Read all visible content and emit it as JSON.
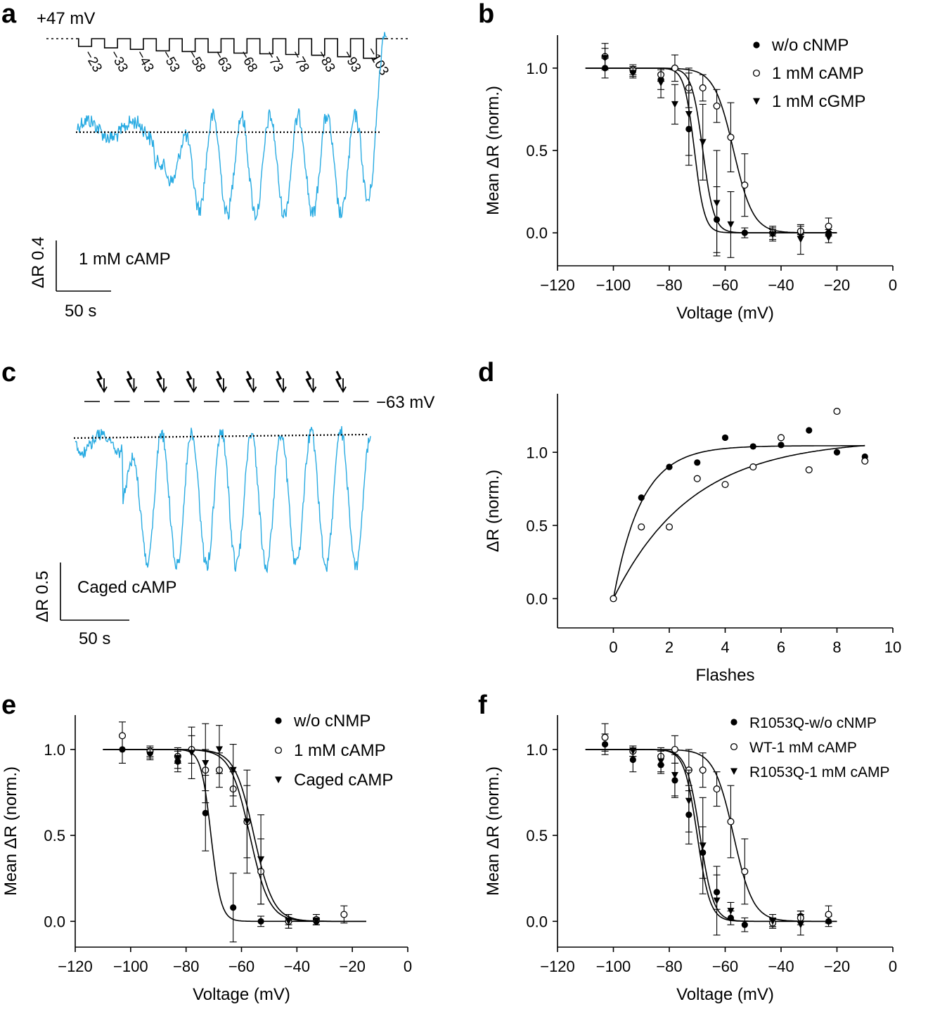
{
  "figure": {
    "panels": {
      "a": {
        "label": "a",
        "top_voltage": "+47 mV",
        "step_voltages": [
          "−23",
          "−33",
          "−43",
          "−53",
          "−58",
          "−63",
          "−68",
          "−73",
          "−78",
          "−83",
          "−93",
          "−103"
        ],
        "condition": "1 mM cAMP",
        "scale_y": "ΔR 0.4",
        "scale_x": "50 s"
      },
      "b": {
        "label": "b"
      },
      "c": {
        "label": "c",
        "holding_voltage": "−63 mV",
        "condition": "Caged cAMP",
        "scale_y": "ΔR 0.5",
        "scale_x": "50 s",
        "n_flashes": 9
      },
      "d": {
        "label": "d"
      },
      "e": {
        "label": "e"
      },
      "f": {
        "label": "f"
      }
    }
  },
  "chart_data": [
    {
      "id": "b",
      "type": "scatter",
      "xlabel": "Voltage (mV)",
      "ylabel": "Mean ΔR (norm.)",
      "xlim": [
        -120,
        0
      ],
      "ylim": [
        -0.2,
        1.2
      ],
      "xticks": [
        -120,
        -100,
        -80,
        -60,
        -40,
        -20,
        0
      ],
      "xtick_labels": [
        "−120",
        "−100",
        "−80",
        "−60",
        "−40",
        "−20",
        "0"
      ],
      "yticks": [
        0,
        0.5,
        1
      ],
      "ytick_labels": [
        "0.0",
        "0.5",
        "1.0"
      ],
      "legend_position": "top-right",
      "series": [
        {
          "name": "w/o cNMP",
          "marker": "filled-circle",
          "x": [
            -103,
            -93,
            -83,
            -73,
            -63,
            -53,
            -43,
            -33,
            -23
          ],
          "y": [
            1.0,
            0.98,
            0.93,
            0.63,
            0.08,
            0.0,
            0.0,
            0.0,
            0.0
          ],
          "err": [
            0.06,
            0.03,
            0.06,
            0.22,
            0.2,
            0.03,
            0.02,
            0.01,
            0.02
          ],
          "fit": {
            "v50": -71,
            "k": 1.8,
            "x0": -110,
            "x1": -20
          }
        },
        {
          "name": "1 mM cAMP",
          "marker": "open-circle",
          "x": [
            -103,
            -93,
            -83,
            -78,
            -73,
            -68,
            -63,
            -58,
            -53,
            -43,
            -33,
            -23
          ],
          "y": [
            1.07,
            0.99,
            0.96,
            1.0,
            0.88,
            0.88,
            0.77,
            0.58,
            0.29,
            0.0,
            0.01,
            0.04
          ],
          "err": [
            0.08,
            0.03,
            0.04,
            0.08,
            0.12,
            0.08,
            0.1,
            0.21,
            0.19,
            0.04,
            0.03,
            0.05
          ],
          "fit": {
            "v50": -57,
            "k": 3.5,
            "x0": -110,
            "x1": -20
          }
        },
        {
          "name": "1 mM cGMP",
          "marker": "filled-triangle",
          "x": [
            -103,
            -93,
            -83,
            -78,
            -73,
            -68,
            -63,
            -58,
            -43,
            -33,
            -23
          ],
          "y": [
            1.06,
            0.97,
            0.91,
            0.78,
            0.72,
            0.55,
            0.18,
            0.05,
            -0.01,
            -0.04,
            -0.03
          ],
          "err": [
            0.06,
            0.03,
            0.09,
            0.12,
            0.25,
            0.23,
            0.32,
            0.2,
            0.04,
            0.09,
            0.03
          ],
          "fit": {
            "v50": -68,
            "k": 2.0,
            "x0": -110,
            "x1": -20
          }
        }
      ]
    },
    {
      "id": "d",
      "type": "scatter",
      "xlabel": "Flashes",
      "ylabel": "ΔR (norm.)",
      "xlim": [
        -2,
        10
      ],
      "ylim": [
        -0.2,
        1.4
      ],
      "xticks": [
        0,
        2,
        4,
        6,
        8,
        10
      ],
      "xtick_labels": [
        "0",
        "2",
        "4",
        "6",
        "8",
        "10"
      ],
      "yticks": [
        0,
        0.5,
        1
      ],
      "ytick_labels": [
        "0.0",
        "0.5",
        "1.0"
      ],
      "series": [
        {
          "name": "filled",
          "marker": "filled-circle",
          "x": [
            0,
            1,
            2,
            3,
            4,
            5,
            6,
            7,
            8,
            9
          ],
          "y": [
            0,
            0.69,
            0.9,
            0.93,
            1.1,
            1.04,
            1.05,
            1.15,
            1.0,
            0.97
          ],
          "fit": {
            "A": 1.045,
            "tau": 1.0
          }
        },
        {
          "name": "open",
          "marker": "open-circle",
          "x": [
            0,
            1,
            2,
            3,
            4,
            5,
            6,
            7,
            8,
            9
          ],
          "y": [
            0,
            0.49,
            0.49,
            0.82,
            0.78,
            0.9,
            1.1,
            0.88,
            1.28,
            0.94
          ],
          "fit": {
            "A": 1.09,
            "tau": 2.8
          }
        }
      ]
    },
    {
      "id": "e",
      "type": "scatter",
      "xlabel": "Voltage (mV)",
      "ylabel": "Mean ΔR (norm.)",
      "xlim": [
        -120,
        0
      ],
      "ylim": [
        -0.15,
        1.2
      ],
      "xticks": [
        -120,
        -100,
        -80,
        -60,
        -40,
        -20,
        0
      ],
      "xtick_labels": [
        "−120",
        "−100",
        "−80",
        "−60",
        "−40",
        "−20",
        "0"
      ],
      "yticks": [
        0,
        0.5,
        1
      ],
      "ytick_labels": [
        "0.0",
        "0.5",
        "1.0"
      ],
      "legend_position": "top-right",
      "series": [
        {
          "name": "w/o cNMP",
          "marker": "filled-circle",
          "x": [
            -103,
            -93,
            -83,
            -73,
            -63,
            -53,
            -43,
            -33
          ],
          "y": [
            1.0,
            0.98,
            0.93,
            0.63,
            0.08,
            0.0,
            0.0,
            0.0
          ],
          "err": [
            0.08,
            0.03,
            0.06,
            0.22,
            0.2,
            0.03,
            0.02,
            0.02
          ],
          "fit": {
            "v50": -71,
            "k": 1.8,
            "x0": -110,
            "x1": -15
          }
        },
        {
          "name": "1 mM cAMP",
          "marker": "open-circle",
          "x": [
            -103,
            -93,
            -83,
            -78,
            -73,
            -68,
            -63,
            -58,
            -53,
            -43,
            -33,
            -23
          ],
          "y": [
            1.08,
            0.99,
            0.96,
            1.0,
            0.88,
            0.88,
            0.77,
            0.58,
            0.29,
            0.0,
            0.01,
            0.04
          ],
          "err": [
            0.08,
            0.03,
            0.04,
            0.08,
            0.12,
            0.1,
            0.1,
            0.21,
            0.19,
            0.04,
            0.03,
            0.05
          ],
          "fit": {
            "v50": -57,
            "k": 3.5,
            "x0": -110,
            "x1": -15
          }
        },
        {
          "name": "Caged cAMP",
          "marker": "filled-triangle",
          "x": [
            -93,
            -83,
            -78,
            -73,
            -68,
            -63,
            -58,
            -53,
            -43,
            -33
          ],
          "y": [
            0.97,
            0.95,
            0.98,
            0.92,
            1.0,
            0.88,
            0.58,
            0.36,
            0.0,
            0.0
          ],
          "err": [
            0.03,
            0.06,
            0.15,
            0.23,
            0.14,
            0.15,
            0.3,
            0.26,
            0.04,
            0.02
          ],
          "fit": {
            "v50": -55.5,
            "k": 3.5,
            "x0": -110,
            "x1": -15
          }
        }
      ]
    },
    {
      "id": "f",
      "type": "scatter",
      "xlabel": "Voltage (mV)",
      "ylabel": "Mean ΔR (norm.)",
      "xlim": [
        -120,
        0
      ],
      "ylim": [
        -0.15,
        1.2
      ],
      "xticks": [
        -120,
        -100,
        -80,
        -60,
        -40,
        -20,
        0
      ],
      "xtick_labels": [
        "−120",
        "−100",
        "−80",
        "−60",
        "−40",
        "−20",
        "0"
      ],
      "yticks": [
        0,
        0.5,
        1
      ],
      "ytick_labels": [
        "0.0",
        "0.5",
        "1.0"
      ],
      "legend_position": "top-right",
      "series": [
        {
          "name": "R1053Q-w/o cNMP",
          "marker": "filled-circle",
          "x": [
            -103,
            -93,
            -83,
            -78,
            -73,
            -68,
            -63,
            -58,
            -53,
            -43,
            -33,
            -23
          ],
          "y": [
            1.03,
            0.94,
            0.91,
            0.82,
            0.62,
            0.4,
            0.17,
            0.02,
            -0.02,
            -0.01,
            0.03,
            0.0
          ],
          "err": [
            0.06,
            0.07,
            0.05,
            0.1,
            0.17,
            0.15,
            0.1,
            0.04,
            0.04,
            0.02,
            0.03,
            0.03
          ],
          "fit": {
            "v50": -70,
            "k": 2.3,
            "x0": -110,
            "x1": -20
          }
        },
        {
          "name": "WT-1 mM cAMP",
          "marker": "open-circle",
          "x": [
            -103,
            -93,
            -83,
            -78,
            -73,
            -68,
            -63,
            -58,
            -53,
            -43,
            -33,
            -23
          ],
          "y": [
            1.07,
            0.99,
            0.96,
            1.0,
            0.88,
            0.88,
            0.77,
            0.58,
            0.29,
            -0.01,
            0.02,
            0.04
          ],
          "err": [
            0.08,
            0.03,
            0.05,
            0.08,
            0.12,
            0.1,
            0.1,
            0.21,
            0.19,
            0.03,
            0.04,
            0.05
          ],
          "fit": {
            "v50": -57,
            "k": 3.5,
            "x0": -110,
            "x1": -20
          }
        },
        {
          "name": "R1053Q-1 mM cAMP",
          "marker": "filled-triangle",
          "x": [
            -93,
            -83,
            -78,
            -73,
            -68,
            -63,
            -58,
            -43,
            -33
          ],
          "y": [
            0.99,
            0.93,
            0.85,
            0.7,
            0.44,
            0.12,
            0.06,
            0.0,
            -0.02
          ],
          "err": [
            0.03,
            0.06,
            0.12,
            0.18,
            0.28,
            0.2,
            0.05,
            0.04,
            0.06
          ],
          "fit": {
            "v50": -69,
            "k": 2.4,
            "x0": -110,
            "x1": -20
          }
        }
      ]
    }
  ]
}
